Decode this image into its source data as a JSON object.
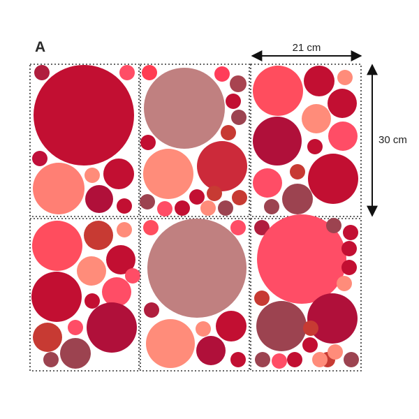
{
  "label": "A",
  "dimensions": {
    "width": "21 cm",
    "height": "30 cm"
  },
  "sheets": [
    {
      "id": "sheet-1",
      "dots": [
        {
          "c": "#b01e3e"
        },
        {
          "c": "#c20f32"
        },
        {
          "c": "#ff4d66"
        },
        {
          "c": "#c0103a"
        },
        {
          "c": "#ff7f74"
        },
        {
          "c": "#ff8c7a"
        },
        {
          "c": "#c20f32"
        },
        {
          "c": "#b0103a"
        },
        {
          "c": "#c20f32"
        }
      ]
    },
    {
      "id": "sheet-2",
      "dots": [
        {
          "c": "#ff3d52"
        },
        {
          "c": "#c08080"
        },
        {
          "c": "#ff3d5a"
        },
        {
          "c": "#a84450"
        },
        {
          "c": "#c20f32"
        },
        {
          "c": "#ff8c7a"
        },
        {
          "c": "#cc2a3a"
        },
        {
          "c": "#c20f32"
        },
        {
          "c": "#c73a33"
        },
        {
          "c": "#9c4350"
        },
        {
          "c": "#c73a33"
        },
        {
          "c": "#c20f32"
        },
        {
          "c": "#9c4350"
        },
        {
          "c": "#ff4d66"
        },
        {
          "c": "#c20f32"
        },
        {
          "c": "#c73a33"
        },
        {
          "c": "#ff8c7a"
        },
        {
          "c": "#9c4350"
        }
      ]
    },
    {
      "id": "sheet-3",
      "dots": [
        {
          "c": "#ff4d5e"
        },
        {
          "c": "#c20f32"
        },
        {
          "c": "#ff8c7a"
        },
        {
          "c": "#c20f32"
        },
        {
          "c": "#ff8c7a"
        },
        {
          "c": "#ff4d66"
        },
        {
          "c": "#b0103a"
        },
        {
          "c": "#c20f32"
        },
        {
          "c": "#c20f32"
        },
        {
          "c": "#c73a33"
        },
        {
          "c": "#ff4d66"
        },
        {
          "c": "#9c4350"
        },
        {
          "c": "#9c4350"
        }
      ]
    },
    {
      "id": "sheet-4",
      "dots": [
        {
          "c": "#ff4d5e"
        },
        {
          "c": "#c73a33"
        },
        {
          "c": "#ff8c7a"
        },
        {
          "c": "#c20f32"
        },
        {
          "c": "#ff8c7a"
        },
        {
          "c": "#c20f32"
        },
        {
          "c": "#ff4d66"
        },
        {
          "c": "#c20f32"
        },
        {
          "c": "#ff4d66"
        },
        {
          "c": "#b0103a"
        },
        {
          "c": "#c73a33"
        },
        {
          "c": "#ff4d66"
        },
        {
          "c": "#9c4350"
        },
        {
          "c": "#9c4350"
        }
      ]
    },
    {
      "id": "sheet-5",
      "dots": [
        {
          "c": "#ff4d5e"
        },
        {
          "c": "#c08080"
        },
        {
          "c": "#ff4d66"
        },
        {
          "c": "#b01e3e"
        },
        {
          "c": "#ff8c7a"
        },
        {
          "c": "#ff8c7a"
        },
        {
          "c": "#c20f32"
        },
        {
          "c": "#b0103a"
        },
        {
          "c": "#c20f32"
        }
      ]
    },
    {
      "id": "sheet-6",
      "dots": [
        {
          "c": "#b01e3e"
        },
        {
          "c": "#ff4d66"
        },
        {
          "c": "#9c4350"
        },
        {
          "c": "#c20f32"
        },
        {
          "c": "#c20f32"
        },
        {
          "c": "#c20f32"
        },
        {
          "c": "#ff8c7a"
        },
        {
          "c": "#c73a33"
        },
        {
          "c": "#9c4350"
        },
        {
          "c": "#b0103a"
        },
        {
          "c": "#c20f32"
        },
        {
          "c": "#c73a33"
        },
        {
          "c": "#ff8c7a"
        },
        {
          "c": "#9c4350"
        },
        {
          "c": "#c73a33"
        },
        {
          "c": "#9c4350"
        },
        {
          "c": "#ff4d66"
        },
        {
          "c": "#c20f32"
        },
        {
          "c": "#ff8c7a"
        }
      ]
    }
  ]
}
